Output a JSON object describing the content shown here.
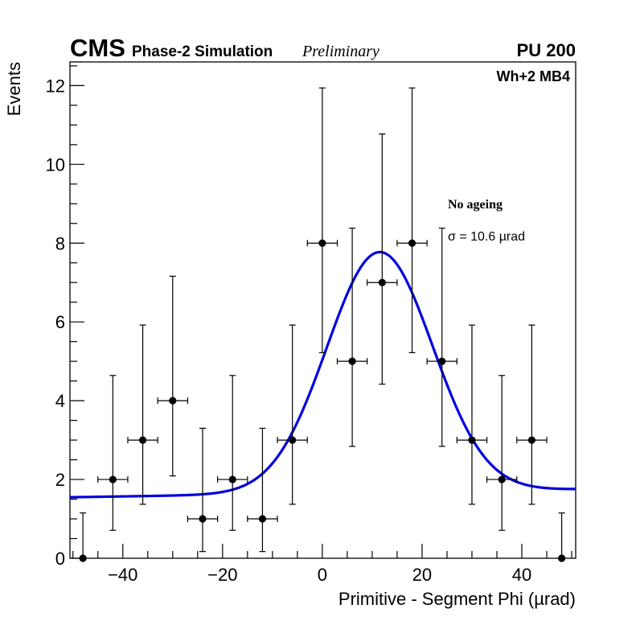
{
  "header": {
    "experiment": "CMS",
    "subtitle": "Phase-2 Simulation",
    "status": "Preliminary",
    "pileup": "PU 200",
    "region": "Wh+2 MB4"
  },
  "annotations": {
    "condition": "No ageing",
    "sigma": "σ = 10.6  µrad"
  },
  "colors": {
    "fit": "#0000e0",
    "points": "#000000"
  },
  "chart_data": {
    "type": "scatter",
    "title": "",
    "xlabel": "Primitive - Segment Phi (µrad)",
    "ylabel": "Events",
    "xlim": [
      -50.6,
      50.8
    ],
    "ylim": [
      0,
      12.6
    ],
    "xticks": [
      -40,
      -20,
      0,
      20,
      40
    ],
    "xtick_labels": [
      "−40",
      "−20",
      "0",
      "20",
      "40"
    ],
    "yticks": [
      0,
      2,
      4,
      6,
      8,
      10,
      12
    ],
    "ytick_labels": [
      "0",
      "2",
      "4",
      "6",
      "8",
      "10",
      "12"
    ],
    "grid": false,
    "bin_width": 6,
    "series": [
      {
        "name": "data",
        "x": [
          -48,
          -42,
          -36,
          -30,
          -24,
          -18,
          -12,
          -6,
          0,
          6,
          12,
          18,
          24,
          30,
          36,
          42,
          48
        ],
        "y": [
          0,
          2,
          3,
          4,
          1,
          2,
          1,
          3,
          8,
          5,
          7,
          8,
          5,
          3,
          2,
          3,
          0
        ],
        "yerr_low": [
          0,
          1.29,
          1.63,
          1.91,
          0.83,
          1.29,
          0.83,
          1.63,
          2.78,
          2.16,
          2.58,
          2.78,
          2.16,
          1.63,
          1.29,
          1.63,
          0
        ],
        "yerr_high": [
          1.15,
          2.64,
          2.92,
          3.16,
          2.3,
          2.64,
          2.3,
          2.92,
          3.94,
          3.38,
          3.77,
          3.94,
          3.38,
          2.92,
          2.64,
          2.92,
          1.15
        ]
      },
      {
        "name": "fit",
        "type": "line",
        "model": "gaussian + linear",
        "mean": 11.5,
        "sigma": 10.6,
        "amplitude": 6.1,
        "background_intercept": 1.65,
        "background_slope": 0.002
      }
    ]
  }
}
